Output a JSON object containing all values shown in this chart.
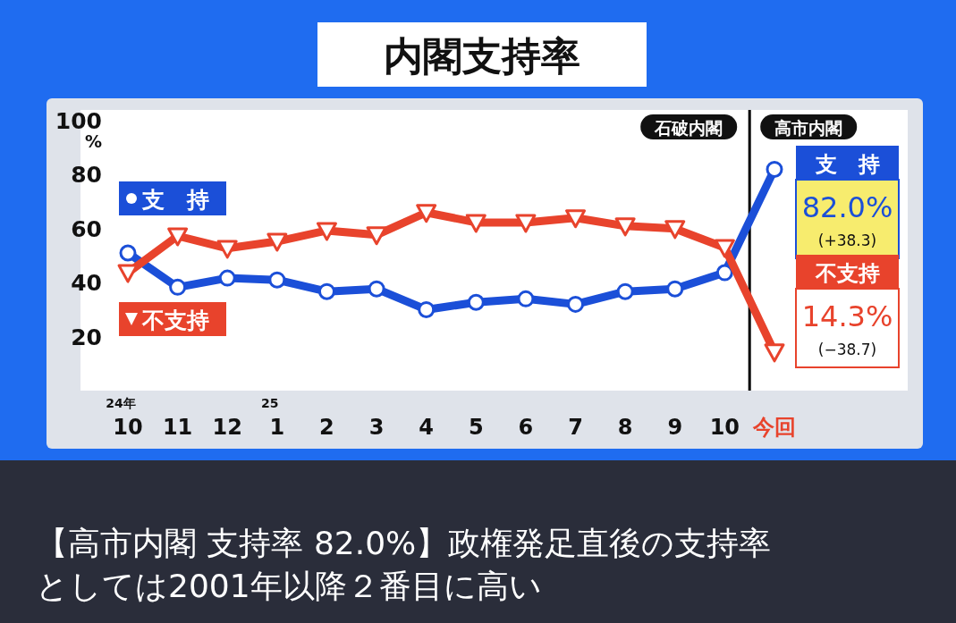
{
  "chart_data": {
    "type": "line",
    "title": "内閣支持率",
    "ylabel": "%",
    "categories": [
      "24年\n10",
      "11",
      "12",
      "25\n1",
      "2",
      "3",
      "4",
      "5",
      "6",
      "7",
      "8",
      "9",
      "10",
      "今回"
    ],
    "series": [
      {
        "name": "支　持",
        "color": "#1b4fd8",
        "marker": "circle",
        "values": [
          51,
          38.3,
          41.7,
          41,
          36.7,
          37.7,
          30,
          32.7,
          34,
          32,
          36.7,
          37.7,
          43.7,
          82.0
        ],
        "value_labels": [
          null,
          null,
          null,
          null,
          null,
          null,
          null,
          null,
          null,
          null,
          null,
          null,
          null,
          "82.0%"
        ]
      },
      {
        "name": "不支持",
        "color": "#e8432c",
        "marker": "triangle",
        "values": [
          43.7,
          57.3,
          52.7,
          55.3,
          59.3,
          57.7,
          66,
          62.3,
          62.3,
          64,
          61,
          60,
          53.0,
          14.3
        ],
        "value_labels": [
          null,
          null,
          null,
          null,
          null,
          null,
          null,
          null,
          null,
          null,
          null,
          null,
          null,
          "14.3%"
        ]
      }
    ],
    "ylim": [
      0,
      104
    ],
    "yticks": [
      20,
      40,
      60,
      80,
      100
    ],
    "grid": false,
    "legend": "left",
    "annotations": [
      "石破内閣",
      "高市内閣",
      "支　持",
      "(+38.3)",
      "不支持",
      "(−38.7)",
      "【高市内閣 支持率 82.0%】政権発足直後の支持率としては2001年以降２番目に高い"
    ]
  }
}
